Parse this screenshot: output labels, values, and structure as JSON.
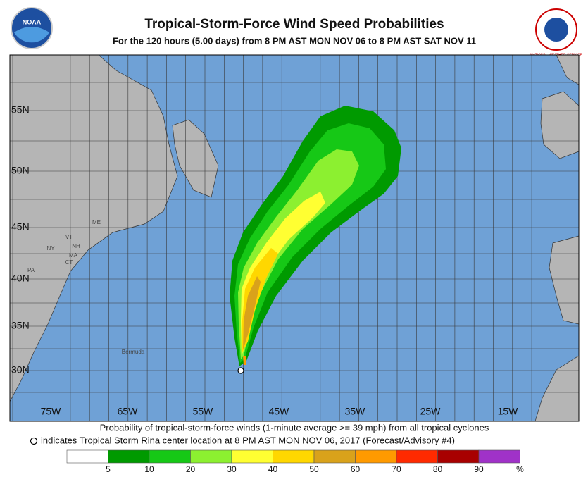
{
  "header": {
    "title": "Tropical-Storm-Force Wind Speed Probabilities",
    "subtitle": "For the 120 hours (5.00 days) from 8 PM AST MON NOV 06 to 8 PM AST SAT NOV 11",
    "left_logo": "NOAA",
    "right_logo": "NATIONAL WEATHER SERVICE"
  },
  "map": {
    "lat_labels": [
      "55N",
      "50N",
      "45N",
      "40N",
      "35N",
      "30N"
    ],
    "lon_labels": [
      "75W",
      "65W",
      "55W",
      "45W",
      "35W",
      "25W",
      "15W"
    ],
    "place_labels": [
      "ME",
      "NY",
      "VT",
      "NH",
      "MA",
      "CT",
      "PA",
      "Bermuda"
    ]
  },
  "caption": {
    "line1": "Probability of tropical-storm-force winds (1-minute average >= 39 mph) from all tropical cyclones",
    "line2": "indicates Tropical Storm Rina center location at 8 PM AST MON NOV 06, 2017 (Forecast/Advisory #4)"
  },
  "legend": {
    "colors": [
      "#ffffff",
      "#009a00",
      "#16c816",
      "#8cf030",
      "#ffff32",
      "#ffd700",
      "#d9a21b",
      "#ff9a00",
      "#ff2a00",
      "#a80000",
      "#a032c8"
    ],
    "labels": [
      "5",
      "10",
      "20",
      "30",
      "40",
      "50",
      "60",
      "70",
      "80",
      "90",
      "%"
    ]
  }
}
